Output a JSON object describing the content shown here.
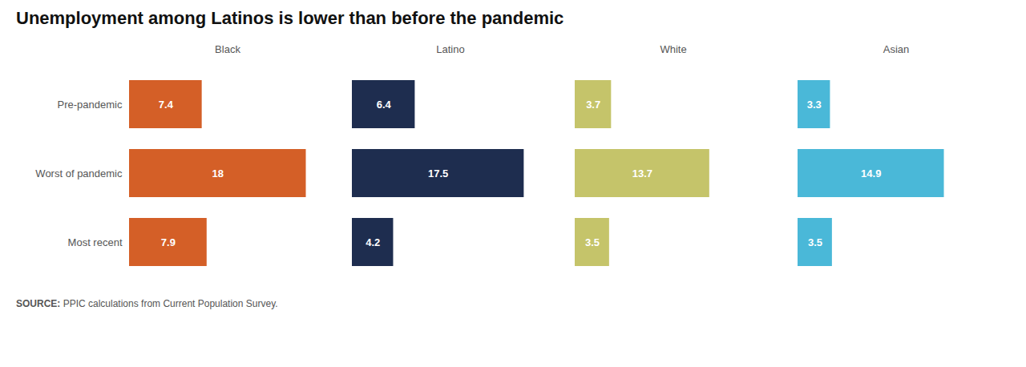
{
  "chart_data": {
    "type": "bar",
    "orientation": "horizontal",
    "title": "Unemployment among Latinos is lower than before the pandemic",
    "annotations": [
      "SOURCE: PPIC calculations from Current Population Survey."
    ],
    "categories": [
      "Pre-pandemic",
      "Worst of pandemic",
      "Most recent"
    ],
    "series": [
      {
        "name": "Black",
        "color": "#d45f27",
        "values": [
          7.4,
          18.0,
          7.9
        ]
      },
      {
        "name": "Latino",
        "color": "#1e2d4f",
        "values": [
          6.4,
          17.5,
          4.2
        ]
      },
      {
        "name": "White",
        "color": "#c5c46a",
        "values": [
          3.7,
          13.7,
          3.5
        ]
      },
      {
        "name": "Asian",
        "color": "#4ab8d8",
        "values": [
          3.3,
          14.9,
          3.5
        ]
      }
    ],
    "xlim": [
      0,
      20
    ],
    "grid": false,
    "data_labels": true,
    "tick_labels": "y"
  }
}
